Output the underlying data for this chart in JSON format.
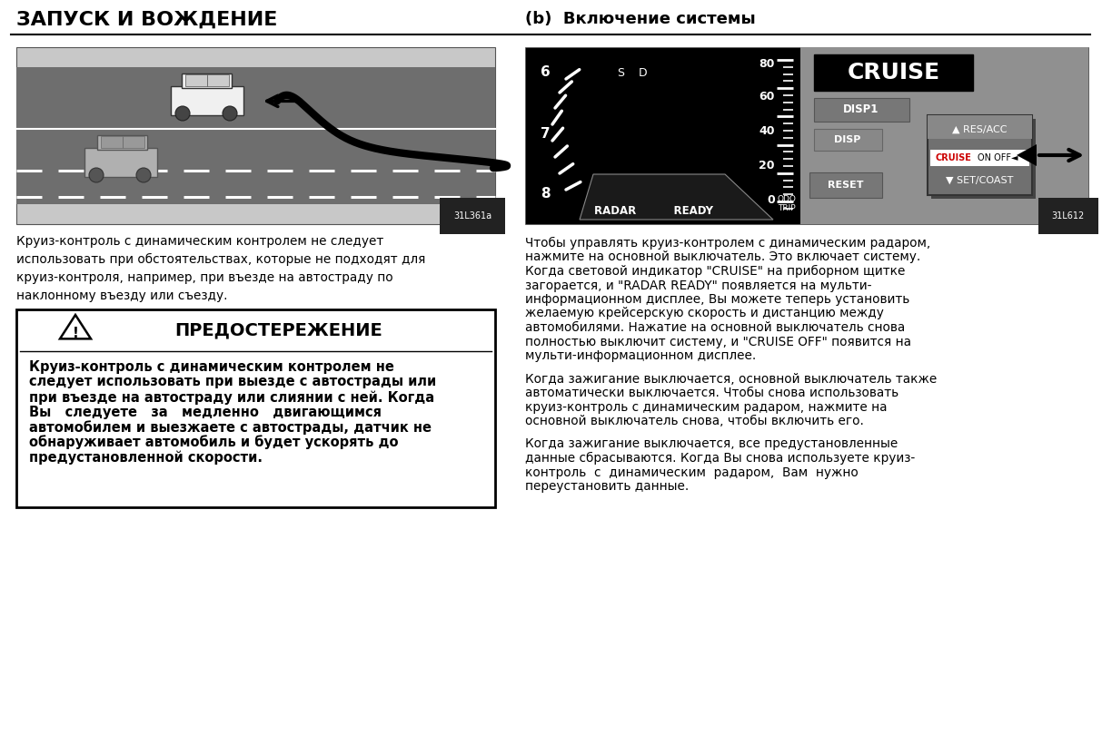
{
  "title": "ЗАПУСК И ВОЖДЕНИЕ",
  "section_b_title": "(b)  Включение системы",
  "left_caption": "Круиз-контроль с динамическим контролем не следует\nиспользовать при обстоятельствах, которые не подходят для\nкруиз-контроля, например, при въезде на автостраду по\nнаклонному въезду или съезду.",
  "warning_title": "ПРЕДОСТЕРЕЖЕНИЕ",
  "warning_text_lines": [
    "Круиз-контроль с динамическим контролем не",
    "следует использовать при выезде с автострады или",
    "при въезде на автостраду или слиянии с ней. Когда",
    "Вы   следуете   за   медленно   двигающимся",
    "автомобилем и выезжаете с автострады, датчик не",
    "обнаруживает автомобиль и будет ускорять до",
    "предустановленной скорости."
  ],
  "right_para1_lines": [
    "Чтобы управлять круиз-контролем с динамическим радаром,",
    "нажмите на основной выключатель. Это включает систему.",
    "Когда световой индикатор \"CRUISE\" на приборном щитке",
    "загорается, и \"RADAR READY\" появляется на мульти-",
    "информационном дисплее, Вы можете теперь установить",
    "желаемую крейсерскую скорость и дистанцию между",
    "автомобилями. Нажатие на основной выключатель снова",
    "полностью выключит систему, и \"CRUISE OFF\" появится на",
    "мульти-информационном дисплее."
  ],
  "right_para2_lines": [
    "Когда зажигание выключается, основной выключатель также",
    "автоматически выключается. Чтобы снова использовать",
    "круиз-контроль с динамическим радаром, нажмите на",
    "основной выключатель снова, чтобы включить его."
  ],
  "right_para3_lines": [
    "Когда зажигание выключается, все предустановленные",
    "данные сбрасываются. Когда Вы снова используете круиз-",
    "контроль  с  динамическим  радаром,  Вам  нужно",
    "переустановить данные."
  ],
  "img_code_left": "31L361a",
  "img_code_right": "31L612",
  "bg_color": "#ffffff",
  "text_color": "#000000"
}
